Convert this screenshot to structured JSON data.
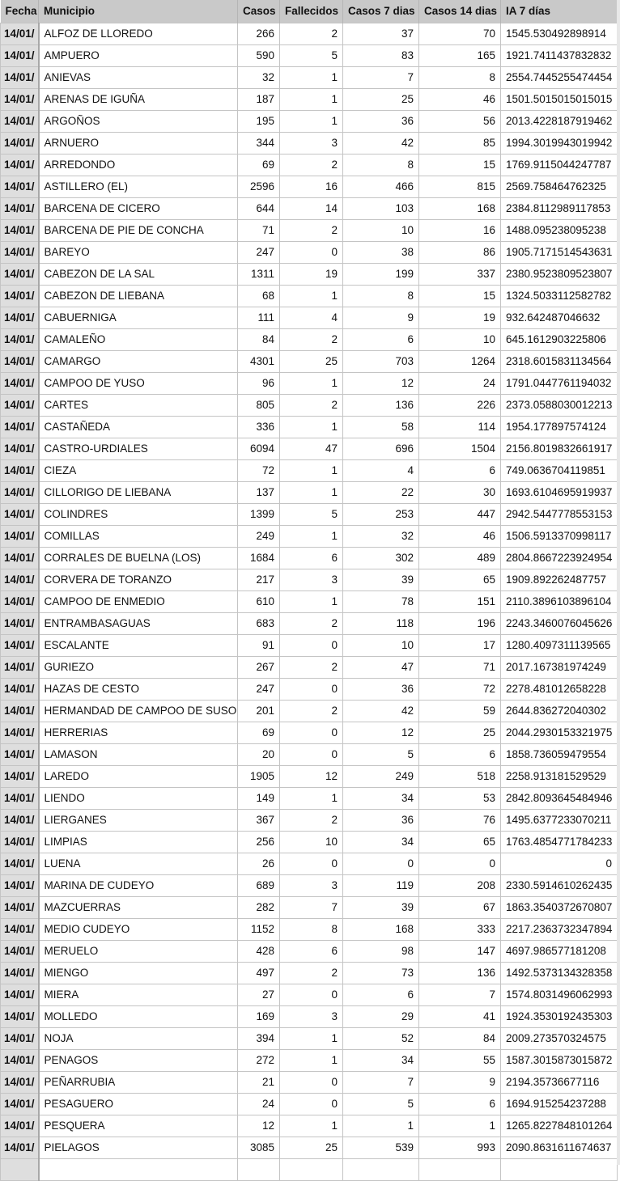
{
  "headers": [
    "Fecha",
    "Municipio",
    "Casos",
    "Fallecidos",
    "Casos 7 dias",
    "Casos 14 dias",
    "IA 7 días"
  ],
  "rows": [
    [
      "14/01/",
      "ALFOZ DE LLOREDO",
      "266",
      "2",
      "37",
      "70",
      "1545.530492898914"
    ],
    [
      "14/01/",
      "AMPUERO",
      "590",
      "5",
      "83",
      "165",
      "1921.7411437832832"
    ],
    [
      "14/01/",
      "ANIEVAS",
      "32",
      "1",
      "7",
      "8",
      "2554.7445255474454"
    ],
    [
      "14/01/",
      "ARENAS DE IGUÑA",
      "187",
      "1",
      "25",
      "46",
      "1501.5015015015015"
    ],
    [
      "14/01/",
      "ARGOÑOS",
      "195",
      "1",
      "36",
      "56",
      "2013.4228187919462"
    ],
    [
      "14/01/",
      "ARNUERO",
      "344",
      "3",
      "42",
      "85",
      "1994.3019943019942"
    ],
    [
      "14/01/",
      "ARREDONDO",
      "69",
      "2",
      "8",
      "15",
      "1769.9115044247787"
    ],
    [
      "14/01/",
      "ASTILLERO (EL)",
      "2596",
      "16",
      "466",
      "815",
      "2569.758464762325"
    ],
    [
      "14/01/",
      "BARCENA DE CICERO",
      "644",
      "14",
      "103",
      "168",
      "2384.8112989117853"
    ],
    [
      "14/01/",
      "BARCENA DE PIE DE CONCHA",
      "71",
      "2",
      "10",
      "16",
      "1488.095238095238"
    ],
    [
      "14/01/",
      "BAREYO",
      "247",
      "0",
      "38",
      "86",
      "1905.7171514543631"
    ],
    [
      "14/01/",
      "CABEZON DE LA SAL",
      "1311",
      "19",
      "199",
      "337",
      "2380.9523809523807"
    ],
    [
      "14/01/",
      "CABEZON DE LIEBANA",
      "68",
      "1",
      "8",
      "15",
      "1324.5033112582782"
    ],
    [
      "14/01/",
      "CABUERNIGA",
      "111",
      "4",
      "9",
      "19",
      "932.642487046632"
    ],
    [
      "14/01/",
      "CAMALEÑO",
      "84",
      "2",
      "6",
      "10",
      "645.1612903225806"
    ],
    [
      "14/01/",
      "CAMARGO",
      "4301",
      "25",
      "703",
      "1264",
      "2318.6015831134564"
    ],
    [
      "14/01/",
      "CAMPOO DE YUSO",
      "96",
      "1",
      "12",
      "24",
      "1791.0447761194032"
    ],
    [
      "14/01/",
      "CARTES",
      "805",
      "2",
      "136",
      "226",
      "2373.0588030012213"
    ],
    [
      "14/01/",
      "CASTAÑEDA",
      "336",
      "1",
      "58",
      "114",
      "1954.177897574124"
    ],
    [
      "14/01/",
      "CASTRO-URDIALES",
      "6094",
      "47",
      "696",
      "1504",
      "2156.8019832661917"
    ],
    [
      "14/01/",
      "CIEZA",
      "72",
      "1",
      "4",
      "6",
      "749.0636704119851"
    ],
    [
      "14/01/",
      "CILLORIGO DE LIEBANA",
      "137",
      "1",
      "22",
      "30",
      "1693.6104695919937"
    ],
    [
      "14/01/",
      "COLINDRES",
      "1399",
      "5",
      "253",
      "447",
      "2942.5447778553153"
    ],
    [
      "14/01/",
      "COMILLAS",
      "249",
      "1",
      "32",
      "46",
      "1506.5913370998117"
    ],
    [
      "14/01/",
      "CORRALES DE BUELNA (LOS)",
      "1684",
      "6",
      "302",
      "489",
      "2804.8667223924954"
    ],
    [
      "14/01/",
      "CORVERA DE TORANZO",
      "217",
      "3",
      "39",
      "65",
      "1909.892262487757"
    ],
    [
      "14/01/",
      "CAMPOO DE ENMEDIO",
      "610",
      "1",
      "78",
      "151",
      "2110.3896103896104"
    ],
    [
      "14/01/",
      "ENTRAMBASAGUAS",
      "683",
      "2",
      "118",
      "196",
      "2243.3460076045626"
    ],
    [
      "14/01/",
      "ESCALANTE",
      "91",
      "0",
      "10",
      "17",
      "1280.4097311139565"
    ],
    [
      "14/01/",
      "GURIEZO",
      "267",
      "2",
      "47",
      "71",
      "2017.167381974249"
    ],
    [
      "14/01/",
      "HAZAS DE CESTO",
      "247",
      "0",
      "36",
      "72",
      "2278.481012658228"
    ],
    [
      "14/01/",
      "HERMANDAD DE CAMPOO DE SUSO",
      "201",
      "2",
      "42",
      "59",
      "2644.836272040302"
    ],
    [
      "14/01/",
      "HERRERIAS",
      "69",
      "0",
      "12",
      "25",
      "2044.2930153321975"
    ],
    [
      "14/01/",
      "LAMASON",
      "20",
      "0",
      "5",
      "6",
      "1858.736059479554"
    ],
    [
      "14/01/",
      "LAREDO",
      "1905",
      "12",
      "249",
      "518",
      "2258.913181529529"
    ],
    [
      "14/01/",
      "LIENDO",
      "149",
      "1",
      "34",
      "53",
      "2842.8093645484946"
    ],
    [
      "14/01/",
      "LIERGANES",
      "367",
      "2",
      "36",
      "76",
      "1495.6377233070211"
    ],
    [
      "14/01/",
      "LIMPIAS",
      "256",
      "10",
      "34",
      "65",
      "1763.4854771784233"
    ],
    [
      "14/01/",
      "LUENA",
      "26",
      "0",
      "0",
      "0",
      "0"
    ],
    [
      "14/01/",
      "MARINA DE CUDEYO",
      "689",
      "3",
      "119",
      "208",
      "2330.5914610262435"
    ],
    [
      "14/01/",
      "MAZCUERRAS",
      "282",
      "7",
      "39",
      "67",
      "1863.3540372670807"
    ],
    [
      "14/01/",
      "MEDIO CUDEYO",
      "1152",
      "8",
      "168",
      "333",
      "2217.2363732347894"
    ],
    [
      "14/01/",
      "MERUELO",
      "428",
      "6",
      "98",
      "147",
      "4697.986577181208"
    ],
    [
      "14/01/",
      "MIENGO",
      "497",
      "2",
      "73",
      "136",
      "1492.5373134328358"
    ],
    [
      "14/01/",
      "MIERA",
      "27",
      "0",
      "6",
      "7",
      "1574.8031496062993"
    ],
    [
      "14/01/",
      "MOLLEDO",
      "169",
      "3",
      "29",
      "41",
      "1924.3530192435303"
    ],
    [
      "14/01/",
      "NOJA",
      "394",
      "1",
      "52",
      "84",
      "2009.273570324575"
    ],
    [
      "14/01/",
      "PENAGOS",
      "272",
      "1",
      "34",
      "55",
      "1587.3015873015872"
    ],
    [
      "14/01/",
      "PEÑARRUBIA",
      "21",
      "0",
      "7",
      "9",
      "2194.35736677116"
    ],
    [
      "14/01/",
      "PESAGUERO",
      "24",
      "0",
      "5",
      "6",
      "1694.915254237288"
    ],
    [
      "14/01/",
      "PESQUERA",
      "12",
      "1",
      "1",
      "1",
      "1265.8227848101264"
    ],
    [
      "14/01/",
      "PIELAGOS",
      "3085",
      "25",
      "539",
      "993",
      "2090.8631611674637"
    ],
    [
      "",
      "",
      "",
      "",
      "",
      "",
      ""
    ]
  ]
}
